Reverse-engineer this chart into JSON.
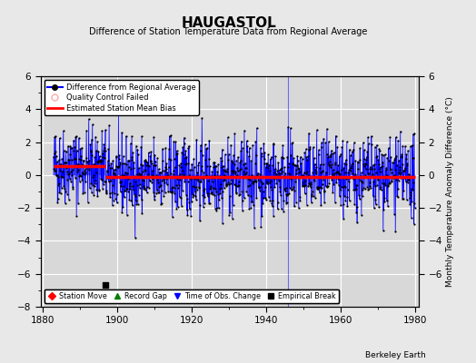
{
  "title": "HAUGASTOL",
  "subtitle": "Difference of Station Temperature Data from Regional Average",
  "ylabel": "Monthly Temperature Anomaly Difference (°C)",
  "ylim": [
    -8,
    6
  ],
  "xlim": [
    1879.5,
    1981
  ],
  "yticks_left": [
    -8,
    -6,
    -4,
    -2,
    0,
    2,
    4,
    6
  ],
  "yticks_right": [
    -6,
    -4,
    -2,
    0,
    2,
    4,
    6
  ],
  "xticks": [
    1880,
    1900,
    1920,
    1940,
    1960,
    1980
  ],
  "data_start_year": 1883,
  "data_end_year": 1980,
  "bias1_start": 1883,
  "bias1_end": 1897,
  "bias1_value": 0.55,
  "bias2_start": 1897,
  "bias2_end": 1980,
  "bias2_value": -0.1,
  "empirical_break_x": 1897,
  "empirical_break_y": -6.7,
  "time_of_obs_change_x": 1946,
  "bg_color": "#e8e8e8",
  "plot_bg_color": "#d8d8d8",
  "line_color": "#0000ff",
  "dot_color": "#000000",
  "bias_color": "#ff0000",
  "grid_color": "#ffffff",
  "watermark": "Berkeley Earth",
  "seed": 42,
  "std_val": 1.15
}
